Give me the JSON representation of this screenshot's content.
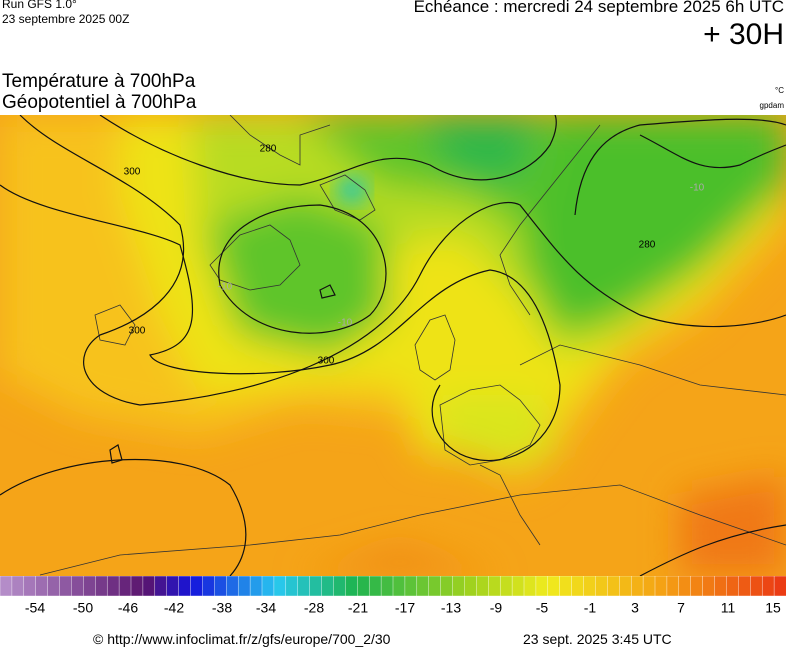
{
  "header": {
    "run": "Run GFS 1.0°",
    "date": "23 septembre 2025 00Z",
    "echeance": "Echéance : mercredi 24 septembre 2025 6h UTC",
    "lead": "+ 30H",
    "title1": "Température à 700hPa",
    "title2": "Géopotentiel à 700hPa",
    "unit1": "°C",
    "unit2": "gpdam"
  },
  "map": {
    "contour_labels": [
      "300",
      "280",
      "300",
      "300",
      "280",
      "-10",
      "-10",
      "-10"
    ]
  },
  "colorbar": {
    "labels": [
      -54,
      -50,
      -46,
      -42,
      -38,
      -34,
      -28,
      -21,
      -17,
      -13,
      -9,
      -5,
      -1,
      3,
      7,
      11,
      15
    ]
  },
  "footer": {
    "url": "© http://www.infoclimat.fr/z/gfs/europe/700_2/30",
    "timestamp": "23 sept. 2025  3:45 UTC"
  }
}
